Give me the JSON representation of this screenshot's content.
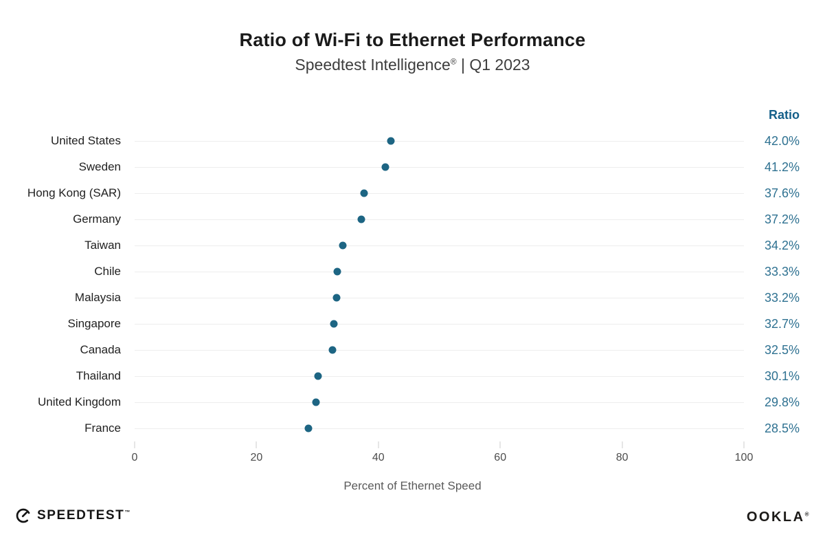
{
  "header": {
    "title": "Ratio of Wi-Fi to Ethernet Performance",
    "subtitle_brand": "Speedtest Intelligence",
    "subtitle_reg": "®",
    "subtitle_rest": " | Q1 2023"
  },
  "ratio_column": {
    "header": "Ratio",
    "header_color": "#15608a",
    "value_color": "#2e7191"
  },
  "chart_data": {
    "type": "scatter",
    "variant": "horizontal-dot-plot",
    "title": "Ratio of Wi-Fi to Ethernet Performance",
    "subtitle": "Speedtest Intelligence® | Q1 2023",
    "categories": [
      "United States",
      "Sweden",
      "Hong Kong (SAR)",
      "Germany",
      "Taiwan",
      "Chile",
      "Malaysia",
      "Singapore",
      "Canada",
      "Thailand",
      "United Kingdom",
      "France"
    ],
    "values": [
      42.0,
      41.2,
      37.6,
      37.2,
      34.2,
      33.3,
      33.2,
      32.7,
      32.5,
      30.1,
      29.8,
      28.5
    ],
    "value_labels": [
      "42.0%",
      "41.2%",
      "37.6%",
      "37.2%",
      "34.2%",
      "33.3%",
      "33.2%",
      "32.7%",
      "32.5%",
      "30.1%",
      "29.8%",
      "28.5%"
    ],
    "xlabel": "Percent of Ethernet Speed",
    "ylabel": "",
    "xlim": [
      0,
      100
    ],
    "xticks": [
      0,
      20,
      40,
      60,
      80,
      100
    ],
    "grid": true,
    "gridline_color": "#ededed",
    "dot_color": "#1d6583",
    "legend": "none"
  },
  "footer": {
    "speedtest_label": "SPEEDTEST",
    "speedtest_mark": "™",
    "ookla_label": "OOKLA",
    "ookla_mark": "®"
  }
}
